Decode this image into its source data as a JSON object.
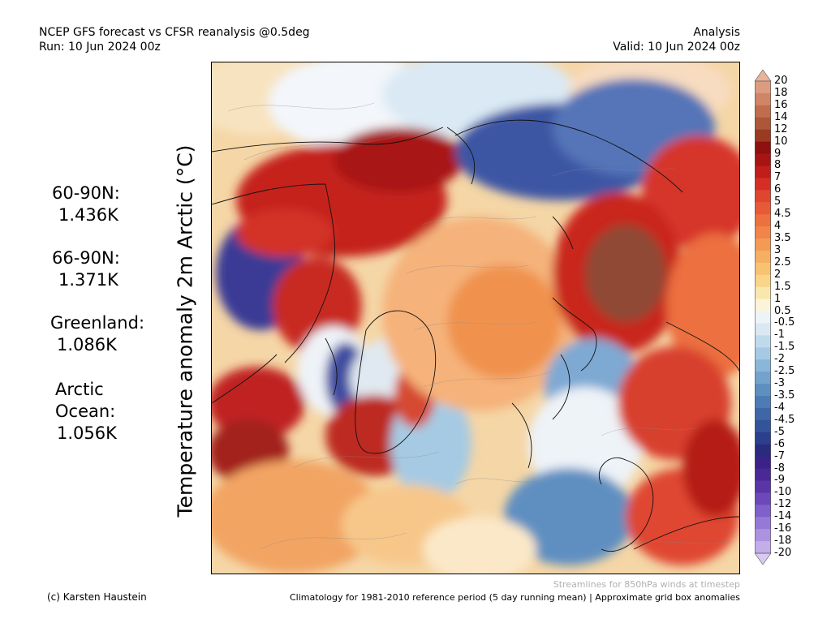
{
  "header": {
    "title": "NCEP GFS forecast vs CFSR reanalysis @0.5deg",
    "run": "Run: 10 Jun 2024 00z",
    "mode": "Analysis",
    "valid": "Valid: 10 Jun 2024 00z"
  },
  "variable_label": "Temperature anomaly 2m Arctic (°C)",
  "stats": [
    {
      "region": "60-90N:",
      "value": "1.436K"
    },
    {
      "region": "66-90N:",
      "value": "1.371K"
    },
    {
      "region": "Greenland:",
      "value": "1.086K"
    },
    {
      "region_lines": [
        "Arctic",
        "Ocean:"
      ],
      "value": "1.056K"
    }
  ],
  "colorbar": {
    "labels": [
      "20",
      "18",
      "16",
      "14",
      "12",
      "10",
      "9",
      "8",
      "7",
      "6",
      "5",
      "4.5",
      "4",
      "3.5",
      "3",
      "2.5",
      "2",
      "1.5",
      "1",
      "0.5",
      "-0.5",
      "-1",
      "-1.5",
      "-2",
      "-2.5",
      "-3",
      "-3.5",
      "-4",
      "-4.5",
      "-5",
      "-6",
      "-7",
      "-8",
      "-9",
      "-10",
      "-12",
      "-14",
      "-16",
      "-18",
      "-20"
    ],
    "colors": [
      "#e8b39a",
      "#dc9c80",
      "#cf8566",
      "#bf6d4d",
      "#ad5639",
      "#9a3a22",
      "#8e1010",
      "#a81414",
      "#c01d1b",
      "#d42e25",
      "#df4630",
      "#e65a37",
      "#ec7040",
      "#f0844a",
      "#f39a55",
      "#f5ae62",
      "#f7c272",
      "#f8d589",
      "#fae7ad",
      "#fbf4db",
      "#eef3f8",
      "#d9e8f3",
      "#bfdaeb",
      "#a6cae3",
      "#8ab7d9",
      "#73a3cd",
      "#5e8fc1",
      "#4d7bb4",
      "#3f67a7",
      "#33539a",
      "#2b3f8c",
      "#2a2b7d",
      "#3b2287",
      "#4a2896",
      "#5a35a8",
      "#6c48ba",
      "#8060c9",
      "#9679d6",
      "#ac93e0",
      "#c3aee9",
      "#d9c9f1"
    ]
  },
  "notes": {
    "streamlines": "Streamlines for 850hPa winds at timestep",
    "climatology": "Climatology for 1981-2010 reference period (5 day running mean) | Approximate grid box anomalies",
    "credit": "(c) Karsten Haustein"
  }
}
